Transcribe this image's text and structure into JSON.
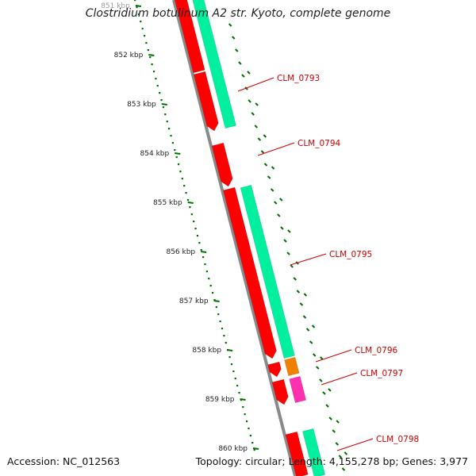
{
  "title": "Clostridium botulinum A2 str. Kyoto, complete genome",
  "footer": {
    "accession": "Accession: NC_012563",
    "topology": "Topology: circular",
    "length": "Length: 4,155,278 bp",
    "genes": "Genes: 3,977"
  },
  "ruler": {
    "ticks": [
      {
        "kbp": 851,
        "label": "851 kbp"
      },
      {
        "kbp": 852,
        "label": "852 kbp"
      },
      {
        "kbp": 853,
        "label": "853 kbp"
      },
      {
        "kbp": 854,
        "label": "854 kbp"
      },
      {
        "kbp": 855,
        "label": "855 kbp"
      },
      {
        "kbp": 856,
        "label": "856 kbp"
      },
      {
        "kbp": 857,
        "label": "857 kbp"
      },
      {
        "kbp": 858,
        "label": "858 kbp"
      },
      {
        "kbp": 859,
        "label": "859 kbp"
      },
      {
        "kbp": 860,
        "label": "860 kbp"
      }
    ]
  },
  "genes": [
    {
      "id": "CLM_0793",
      "label": "CLM_0793"
    },
    {
      "id": "CLM_0794",
      "label": "CLM_0794"
    },
    {
      "id": "CLM_0795",
      "label": "CLM_0795"
    },
    {
      "id": "CLM_0796",
      "label": "CLM_0796"
    },
    {
      "id": "CLM_0797",
      "label": "CLM_0797"
    },
    {
      "id": "CLM_0798",
      "label": "CLM_0798"
    }
  ],
  "colors": {
    "backbone": "#8a8a8a",
    "cds": "#ff0000",
    "gene": "#00f0a0",
    "trna": "#f08000",
    "misc": "#ff30b0",
    "gc_tick": "#007000",
    "ruler": "#007000",
    "gene_label": "#cc0000",
    "text": "#222222"
  }
}
